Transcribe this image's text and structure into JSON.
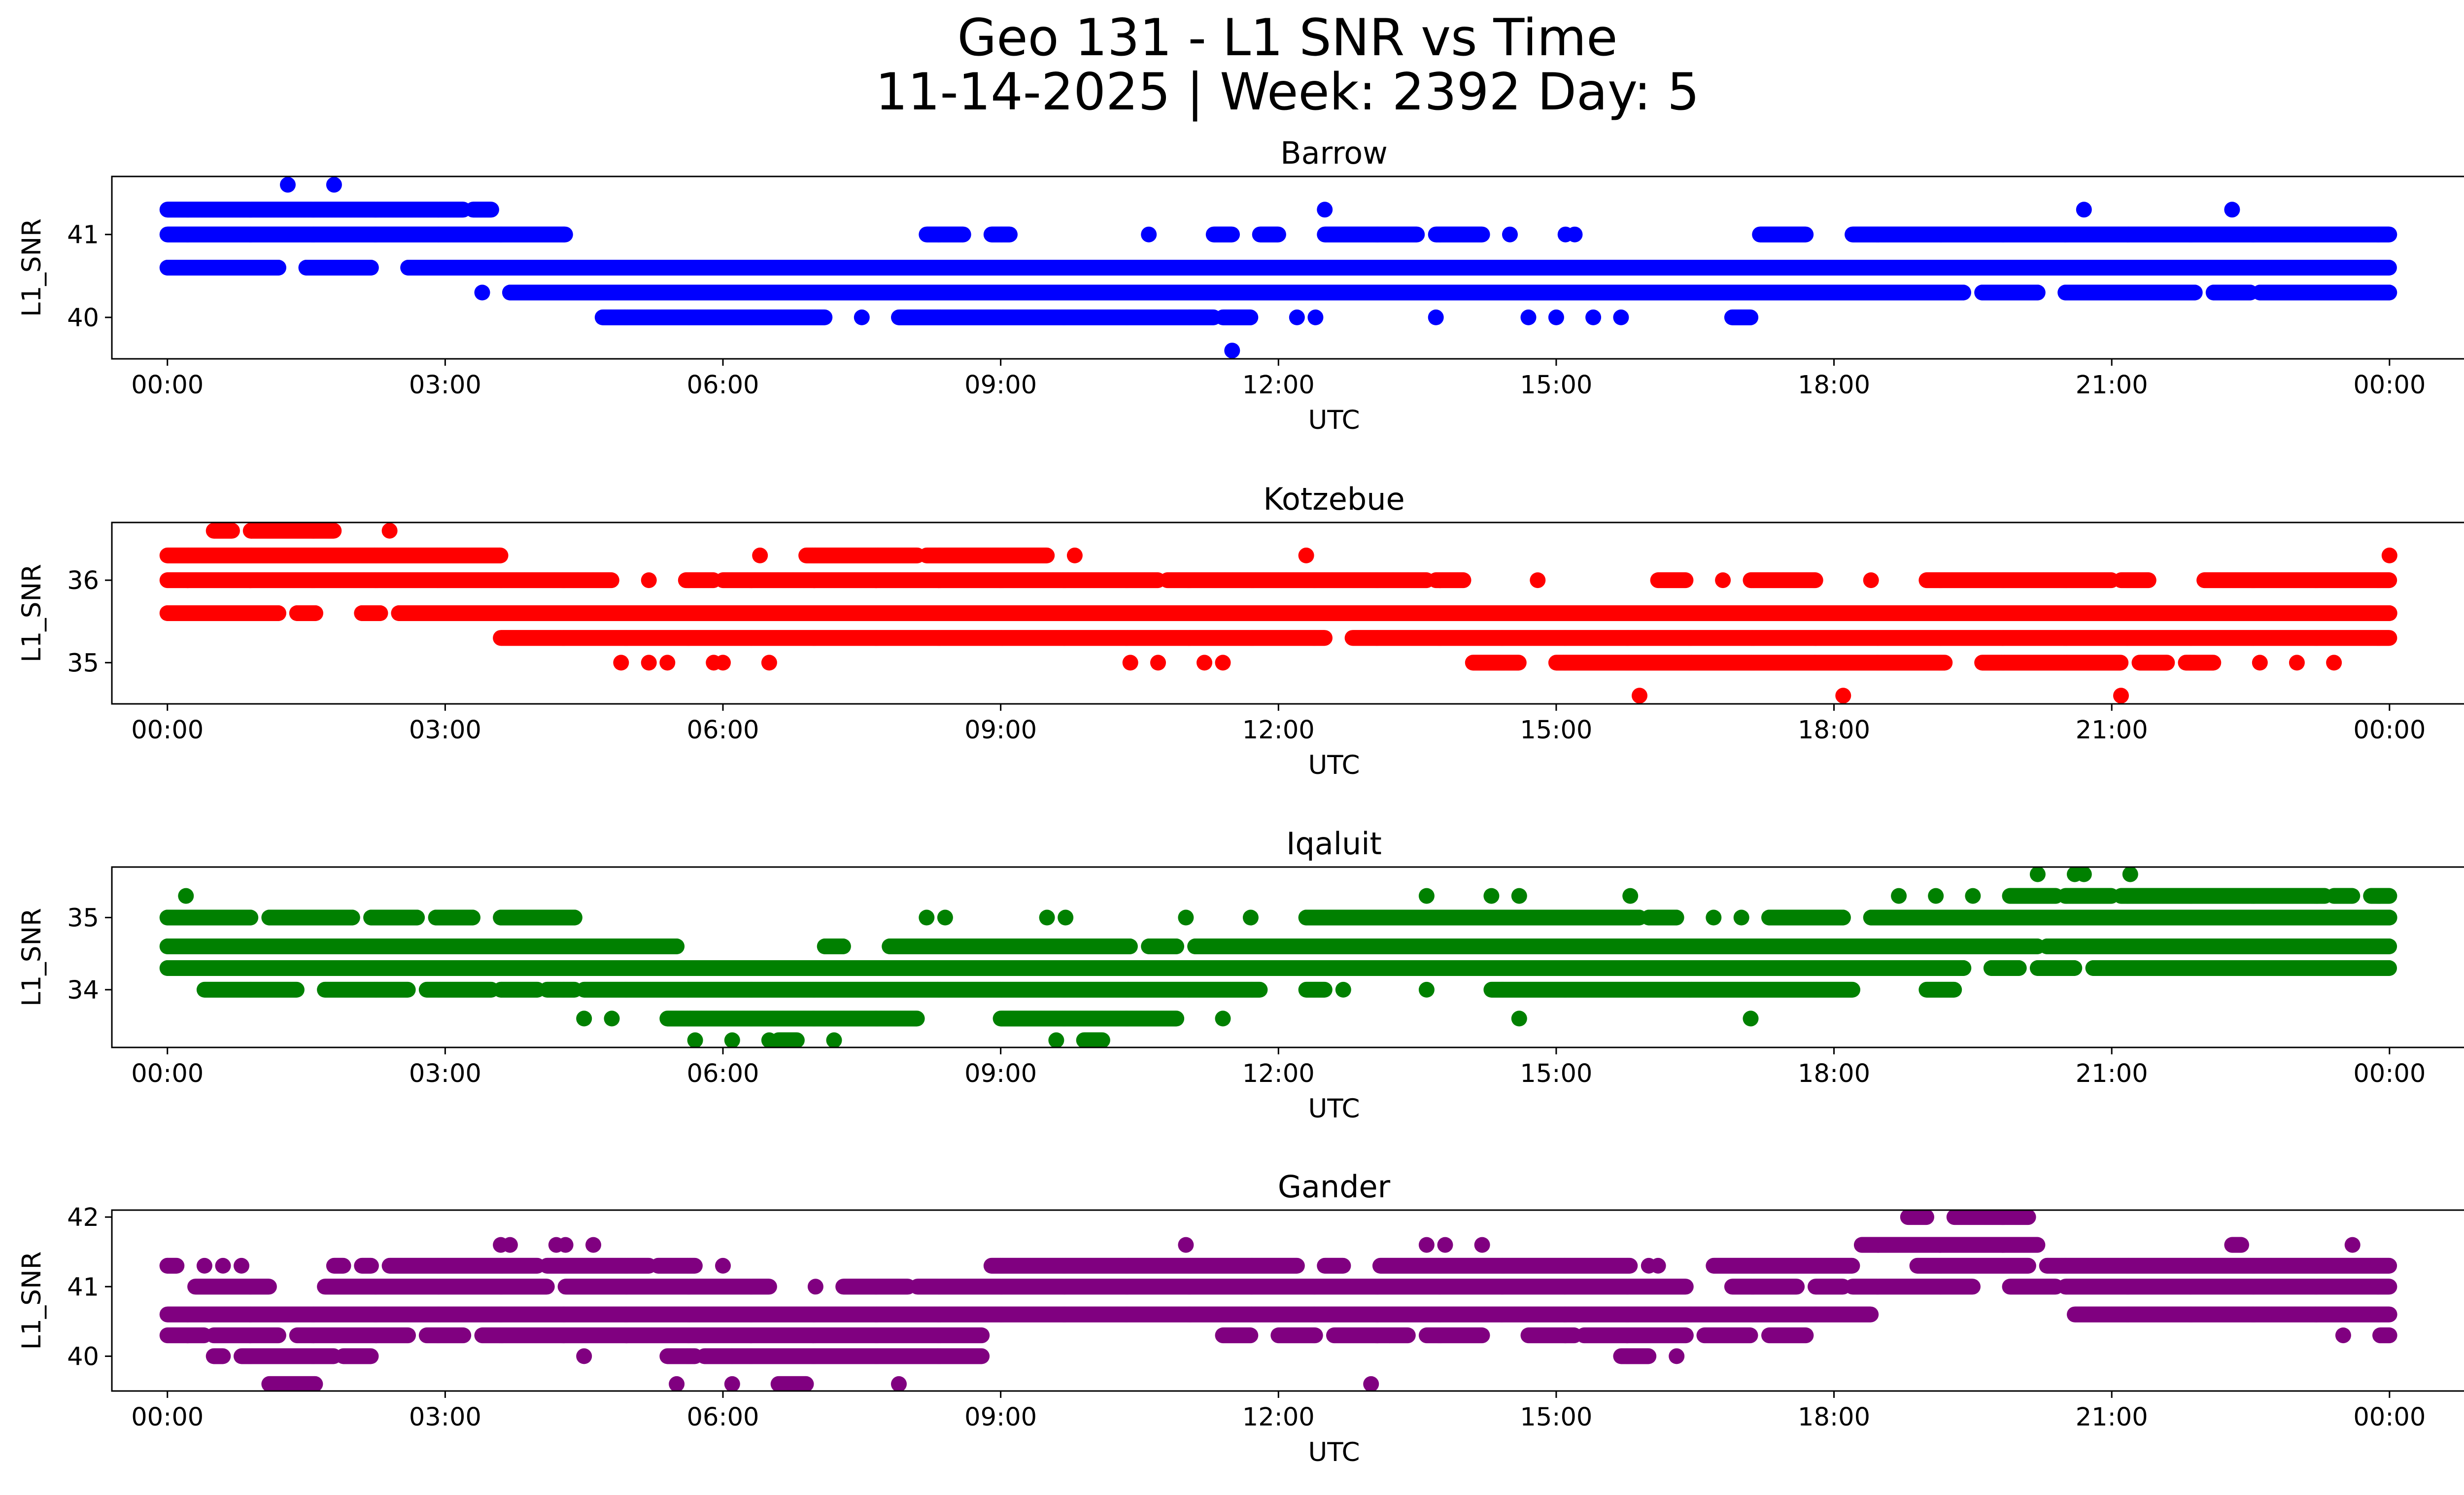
{
  "figure": {
    "title_line1": "Geo 131 - L1 SNR vs Time",
    "title_line2": "11-14-2025 | Week: 2392 Day: 5"
  },
  "chart_data": [
    {
      "type": "scatter",
      "title": "Barrow",
      "xlabel": "UTC",
      "ylabel": "L1_SNR",
      "color": "#0000ff",
      "xlim_hours": [
        -0.6,
        25.8
      ],
      "ylim": [
        39.5,
        41.7
      ],
      "yticks": [
        40,
        41
      ],
      "xtick_labels": [
        "00:00",
        "03:00",
        "06:00",
        "09:00",
        "12:00",
        "15:00",
        "18:00",
        "21:00",
        "00:00"
      ],
      "bands": [
        {
          "y": 41.3,
          "ranges": [
            [
              0.0,
              3.2
            ],
            [
              3.3,
              3.5
            ]
          ]
        },
        {
          "y": 41.0,
          "ranges": [
            [
              0.0,
              4.3
            ],
            [
              8.2,
              8.6
            ],
            [
              8.9,
              9.1
            ],
            [
              11.3,
              11.5
            ],
            [
              11.8,
              12.0
            ],
            [
              12.5,
              13.5
            ],
            [
              13.7,
              14.2
            ],
            [
              17.2,
              17.7
            ],
            [
              18.2,
              24.0
            ]
          ]
        },
        {
          "y": 40.6,
          "ranges": [
            [
              0.0,
              1.2
            ],
            [
              1.5,
              2.2
            ],
            [
              2.6,
              24.0
            ]
          ]
        },
        {
          "y": 40.3,
          "ranges": [
            [
              3.7,
              19.4
            ],
            [
              19.6,
              20.2
            ],
            [
              20.5,
              21.9
            ],
            [
              22.1,
              22.5
            ],
            [
              22.6,
              24.0
            ]
          ]
        },
        {
          "y": 40.0,
          "ranges": [
            [
              4.7,
              7.1
            ],
            [
              7.9,
              11.3
            ],
            [
              11.4,
              11.7
            ],
            [
              16.9,
              17.1
            ]
          ]
        }
      ],
      "points": [
        [
          1.3,
          41.6
        ],
        [
          1.8,
          41.6
        ],
        [
          11.5,
          39.6
        ],
        [
          12.5,
          41.3
        ],
        [
          20.7,
          41.3
        ],
        [
          22.3,
          41.3
        ],
        [
          3.4,
          40.3
        ],
        [
          10.6,
          41.0
        ],
        [
          14.5,
          41.0
        ],
        [
          14.2,
          41.0
        ],
        [
          15.1,
          41.0
        ],
        [
          15.2,
          41.0
        ],
        [
          7.5,
          40.0
        ],
        [
          12.2,
          40.0
        ],
        [
          12.4,
          40.0
        ],
        [
          13.7,
          40.0
        ],
        [
          14.7,
          40.0
        ],
        [
          15.0,
          40.0
        ],
        [
          15.4,
          40.0
        ],
        [
          15.7,
          40.0
        ]
      ]
    },
    {
      "type": "scatter",
      "title": "Kotzebue",
      "xlabel": "UTC",
      "ylabel": "L1_SNR",
      "color": "#ff0000",
      "xlim_hours": [
        -0.6,
        25.8
      ],
      "ylim": [
        34.5,
        36.7
      ],
      "yticks": [
        35,
        36
      ],
      "xtick_labels": [
        "00:00",
        "03:00",
        "06:00",
        "09:00",
        "12:00",
        "15:00",
        "18:00",
        "21:00",
        "00:00"
      ],
      "bands": [
        {
          "y": 36.6,
          "ranges": [
            [
              0.5,
              0.7
            ],
            [
              0.9,
              1.8
            ]
          ]
        },
        {
          "y": 36.3,
          "ranges": [
            [
              0.0,
              3.6
            ],
            [
              6.9,
              8.1
            ],
            [
              8.2,
              9.5
            ]
          ]
        },
        {
          "y": 36.0,
          "ranges": [
            [
              0.0,
              4.8
            ],
            [
              5.6,
              5.9
            ],
            [
              6.0,
              10.7
            ],
            [
              10.8,
              13.6
            ],
            [
              13.7,
              14.0
            ],
            [
              16.1,
              16.4
            ],
            [
              17.1,
              17.8
            ],
            [
              19.0,
              21.0
            ],
            [
              21.1,
              21.4
            ],
            [
              22.0,
              24.0
            ]
          ]
        },
        {
          "y": 35.6,
          "ranges": [
            [
              0.0,
              1.2
            ],
            [
              1.4,
              1.6
            ],
            [
              2.1,
              2.3
            ],
            [
              2.5,
              24.0
            ]
          ]
        },
        {
          "y": 35.3,
          "ranges": [
            [
              3.6,
              12.5
            ],
            [
              12.8,
              24.0
            ]
          ]
        },
        {
          "y": 35.0,
          "ranges": [
            [
              14.1,
              14.6
            ],
            [
              15.0,
              19.2
            ],
            [
              19.6,
              21.1
            ],
            [
              21.3,
              21.6
            ],
            [
              21.8,
              22.1
            ]
          ]
        }
      ],
      "points": [
        [
          2.4,
          36.6
        ],
        [
          6.4,
          36.3
        ],
        [
          9.8,
          36.3
        ],
        [
          12.3,
          36.3
        ],
        [
          24.0,
          36.3
        ],
        [
          4.9,
          35.0
        ],
        [
          5.2,
          35.0
        ],
        [
          5.4,
          35.0
        ],
        [
          5.9,
          35.0
        ],
        [
          6.0,
          35.0
        ],
        [
          6.5,
          35.0
        ],
        [
          10.4,
          35.0
        ],
        [
          10.7,
          35.0
        ],
        [
          11.2,
          35.0
        ],
        [
          11.4,
          35.0
        ],
        [
          22.6,
          35.0
        ],
        [
          23.0,
          35.0
        ],
        [
          23.4,
          35.0
        ],
        [
          15.9,
          34.6
        ],
        [
          18.1,
          34.6
        ],
        [
          21.1,
          34.6
        ],
        [
          14.8,
          36.0
        ],
        [
          16.8,
          36.0
        ],
        [
          18.4,
          36.0
        ],
        [
          5.2,
          36.0
        ]
      ]
    },
    {
      "type": "scatter",
      "title": "Iqaluit",
      "xlabel": "UTC",
      "ylabel": "L1_SNR",
      "color": "#008000",
      "xlim_hours": [
        -0.6,
        25.8
      ],
      "ylim": [
        33.2,
        35.7
      ],
      "yticks": [
        34,
        35
      ],
      "xtick_labels": [
        "00:00",
        "03:00",
        "06:00",
        "09:00",
        "12:00",
        "15:00",
        "18:00",
        "21:00",
        "00:00"
      ],
      "bands": [
        {
          "y": 35.3,
          "ranges": [
            [
              19.9,
              20.4
            ],
            [
              20.5,
              21.0
            ],
            [
              21.1,
              23.3
            ],
            [
              23.4,
              23.6
            ],
            [
              23.8,
              24.0
            ]
          ]
        },
        {
          "y": 35.0,
          "ranges": [
            [
              0.0,
              0.9
            ],
            [
              1.1,
              2.0
            ],
            [
              2.2,
              2.7
            ],
            [
              2.9,
              3.3
            ],
            [
              3.6,
              4.4
            ],
            [
              12.3,
              15.9
            ],
            [
              16.0,
              16.3
            ],
            [
              17.3,
              18.1
            ],
            [
              18.4,
              24.0
            ]
          ]
        },
        {
          "y": 34.6,
          "ranges": [
            [
              0.0,
              5.5
            ],
            [
              7.1,
              7.3
            ],
            [
              7.8,
              10.4
            ],
            [
              10.6,
              10.9
            ],
            [
              11.1,
              20.2
            ],
            [
              20.3,
              24.0
            ]
          ]
        },
        {
          "y": 34.3,
          "ranges": [
            [
              0.0,
              19.4
            ],
            [
              19.7,
              20.0
            ],
            [
              20.2,
              20.6
            ],
            [
              20.8,
              24.0
            ]
          ]
        },
        {
          "y": 34.0,
          "ranges": [
            [
              0.4,
              1.4
            ],
            [
              1.7,
              2.6
            ],
            [
              2.8,
              3.5
            ],
            [
              3.6,
              4.0
            ],
            [
              4.1,
              4.4
            ],
            [
              4.5,
              11.8
            ],
            [
              12.3,
              12.5
            ],
            [
              14.3,
              18.2
            ],
            [
              19.0,
              19.3
            ]
          ]
        },
        {
          "y": 33.6,
          "ranges": [
            [
              5.4,
              8.1
            ],
            [
              9.0,
              10.9
            ]
          ]
        },
        {
          "y": 33.3,
          "ranges": [
            [
              6.6,
              6.8
            ],
            [
              9.9,
              10.1
            ]
          ]
        }
      ],
      "points": [
        [
          0.2,
          35.3
        ],
        [
          13.6,
          35.3
        ],
        [
          14.3,
          35.3
        ],
        [
          14.6,
          35.3
        ],
        [
          15.8,
          35.3
        ],
        [
          18.7,
          35.3
        ],
        [
          19.1,
          35.3
        ],
        [
          19.5,
          35.3
        ],
        [
          20.2,
          35.6
        ],
        [
          20.6,
          35.6
        ],
        [
          20.7,
          35.6
        ],
        [
          21.2,
          35.6
        ],
        [
          8.2,
          35.0
        ],
        [
          8.4,
          35.0
        ],
        [
          9.5,
          35.0
        ],
        [
          9.7,
          35.0
        ],
        [
          11.0,
          35.0
        ],
        [
          11.7,
          35.0
        ],
        [
          16.7,
          35.0
        ],
        [
          17.0,
          35.0
        ],
        [
          12.7,
          34.0
        ],
        [
          13.6,
          34.0
        ],
        [
          4.5,
          33.6
        ],
        [
          4.8,
          33.6
        ],
        [
          11.4,
          33.6
        ],
        [
          14.6,
          33.6
        ],
        [
          17.1,
          33.6
        ],
        [
          5.7,
          33.3
        ],
        [
          6.1,
          33.3
        ],
        [
          6.5,
          33.3
        ],
        [
          7.2,
          33.3
        ],
        [
          9.6,
          33.3
        ]
      ]
    },
    {
      "type": "scatter",
      "title": "Gander",
      "xlabel": "UTC",
      "ylabel": "L1_SNR",
      "color": "#800080",
      "xlim_hours": [
        -0.6,
        25.8
      ],
      "ylim": [
        39.5,
        42.1
      ],
      "yticks": [
        40,
        41,
        42
      ],
      "xtick_labels": [
        "00:00",
        "03:00",
        "06:00",
        "09:00",
        "12:00",
        "15:00",
        "18:00",
        "21:00",
        "00:00"
      ],
      "bands": [
        {
          "y": 42.0,
          "ranges": [
            [
              18.8,
              19.0
            ],
            [
              19.3,
              20.1
            ]
          ]
        },
        {
          "y": 41.6,
          "ranges": [
            [
              18.3,
              20.2
            ],
            [
              22.3,
              22.4
            ]
          ]
        },
        {
          "y": 41.3,
          "ranges": [
            [
              0.0,
              0.1
            ],
            [
              1.8,
              1.9
            ],
            [
              2.1,
              2.2
            ],
            [
              2.4,
              4.0
            ],
            [
              4.1,
              5.2
            ],
            [
              5.3,
              5.7
            ],
            [
              8.9,
              12.2
            ],
            [
              12.5,
              12.7
            ],
            [
              13.1,
              15.8
            ],
            [
              16.7,
              18.2
            ],
            [
              18.9,
              20.1
            ],
            [
              20.3,
              24.0
            ]
          ]
        },
        {
          "y": 41.0,
          "ranges": [
            [
              0.3,
              1.1
            ],
            [
              1.7,
              4.1
            ],
            [
              4.3,
              6.5
            ],
            [
              7.3,
              8.0
            ],
            [
              8.1,
              16.4
            ],
            [
              16.9,
              17.6
            ],
            [
              17.8,
              18.1
            ],
            [
              18.2,
              19.5
            ],
            [
              19.9,
              20.4
            ],
            [
              20.5,
              24.0
            ]
          ]
        },
        {
          "y": 40.6,
          "ranges": [
            [
              0.0,
              18.4
            ],
            [
              20.6,
              24.0
            ]
          ]
        },
        {
          "y": 40.3,
          "ranges": [
            [
              0.0,
              0.4
            ],
            [
              0.5,
              1.2
            ],
            [
              1.4,
              2.6
            ],
            [
              2.8,
              3.2
            ],
            [
              3.4,
              8.8
            ],
            [
              11.4,
              11.7
            ],
            [
              12.0,
              12.4
            ],
            [
              12.6,
              13.4
            ],
            [
              13.6,
              14.2
            ],
            [
              14.7,
              15.2
            ],
            [
              15.3,
              16.4
            ],
            [
              16.6,
              17.1
            ],
            [
              17.3,
              17.7
            ],
            [
              23.9,
              24.0
            ]
          ]
        },
        {
          "y": 40.0,
          "ranges": [
            [
              0.5,
              0.6
            ],
            [
              0.8,
              1.8
            ],
            [
              1.9,
              2.2
            ],
            [
              5.4,
              5.7
            ],
            [
              5.8,
              6.1
            ],
            [
              6.1,
              8.8
            ],
            [
              15.7,
              16.0
            ]
          ]
        },
        {
          "y": 39.6,
          "ranges": [
            [
              1.1,
              1.6
            ],
            [
              6.6,
              6.9
            ]
          ]
        }
      ],
      "points": [
        [
          0.0,
          41.3
        ],
        [
          0.4,
          41.3
        ],
        [
          0.6,
          41.3
        ],
        [
          0.8,
          41.3
        ],
        [
          3.6,
          41.6
        ],
        [
          3.7,
          41.6
        ],
        [
          4.2,
          41.6
        ],
        [
          4.3,
          41.6
        ],
        [
          4.6,
          41.6
        ],
        [
          11.0,
          41.6
        ],
        [
          13.6,
          41.6
        ],
        [
          13.8,
          41.6
        ],
        [
          14.2,
          41.6
        ],
        [
          23.6,
          41.6
        ],
        [
          6.0,
          41.3
        ],
        [
          7.0,
          41.0
        ],
        [
          16.0,
          41.3
        ],
        [
          16.1,
          41.3
        ],
        [
          4.5,
          40.0
        ],
        [
          16.3,
          40.0
        ],
        [
          5.5,
          39.6
        ],
        [
          6.1,
          39.6
        ],
        [
          7.9,
          39.6
        ],
        [
          13.0,
          39.6
        ],
        [
          23.5,
          40.3
        ],
        [
          13.2,
          40.3
        ]
      ]
    }
  ]
}
